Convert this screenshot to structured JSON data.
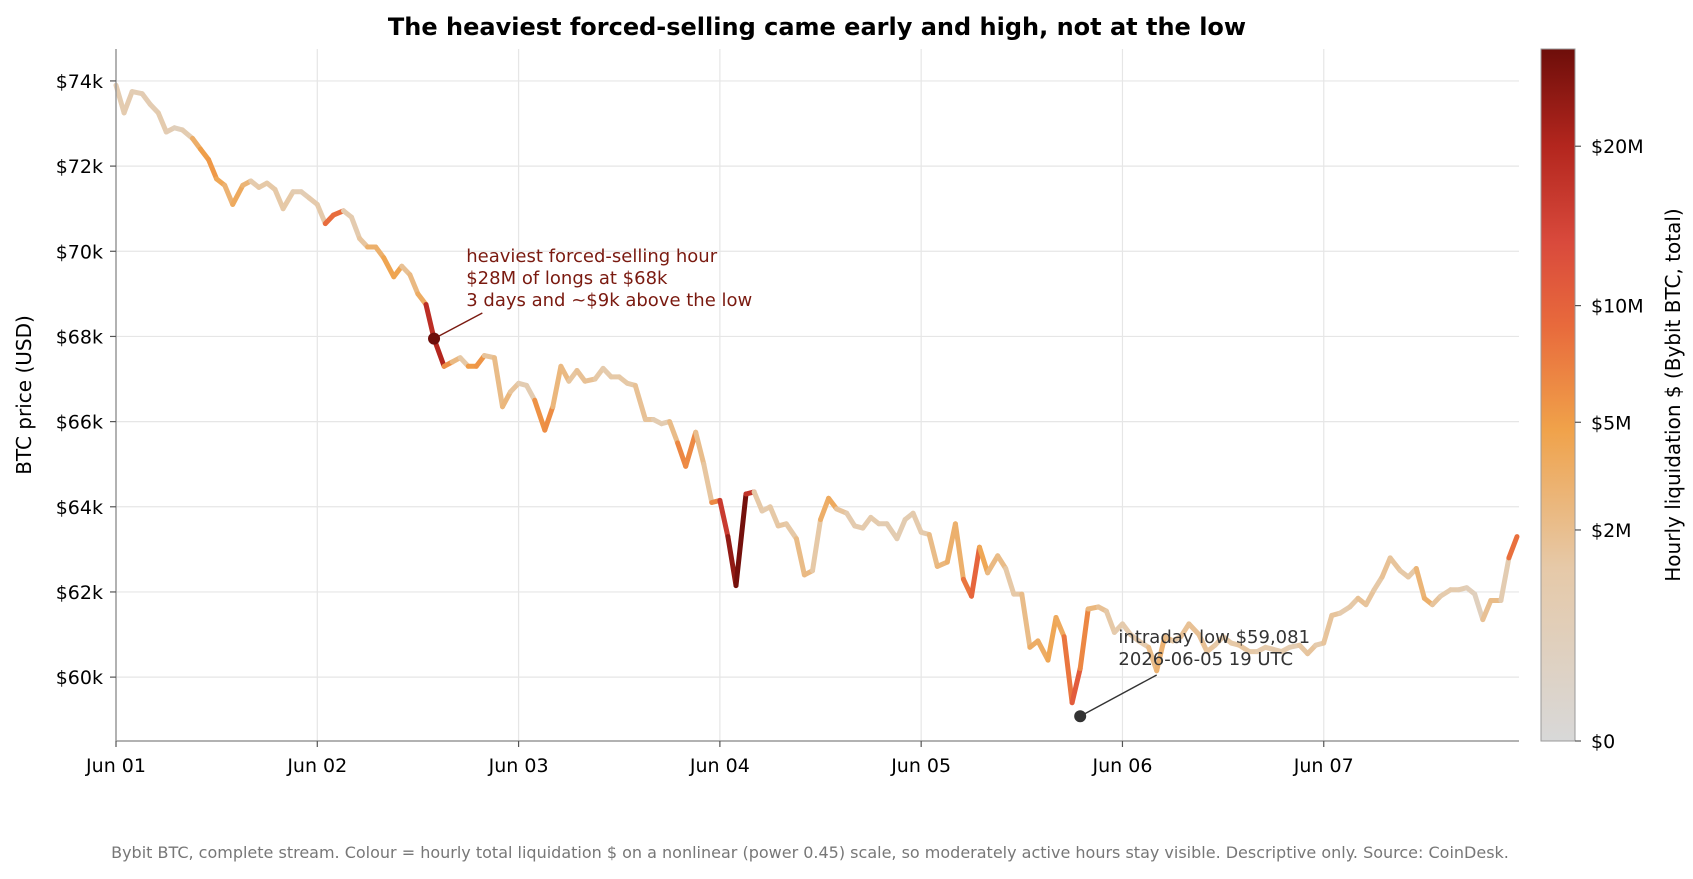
{
  "chart_data": {
    "type": "line",
    "title": "The heaviest forced-selling came early and high, not at the low",
    "ylabel": "BTC price (USD)",
    "xlabel": "",
    "x_unit": "2026-06 day (fractional, UTC)",
    "xlim": [
      1.0,
      7.97
    ],
    "ylim": [
      58500,
      74750
    ],
    "x_ticks": [
      {
        "x": 1,
        "label": "Jun 01"
      },
      {
        "x": 2,
        "label": "Jun 02"
      },
      {
        "x": 3,
        "label": "Jun 03"
      },
      {
        "x": 4,
        "label": "Jun 04"
      },
      {
        "x": 5,
        "label": "Jun 05"
      },
      {
        "x": 6,
        "label": "Jun 06"
      },
      {
        "x": 7,
        "label": "Jun 07"
      }
    ],
    "y_ticks": [
      {
        "y": 60000,
        "label": "$60k"
      },
      {
        "y": 62000,
        "label": "$62k"
      },
      {
        "y": 64000,
        "label": "$64k"
      },
      {
        "y": 66000,
        "label": "$66k"
      },
      {
        "y": 68000,
        "label": "$68k"
      },
      {
        "y": 70000,
        "label": "$70k"
      },
      {
        "y": 72000,
        "label": "$72k"
      },
      {
        "y": 74000,
        "label": "$74k"
      }
    ],
    "grid": true,
    "colorbar": {
      "label": "Hourly liquidation $ (Bybit BTC, total)",
      "scale": "power 0.45",
      "max_millions": 28,
      "ticks": [
        {
          "value_millions": 0,
          "label": "$0"
        },
        {
          "value_millions": 2,
          "label": "$2M"
        },
        {
          "value_millions": 5,
          "label": "$5M"
        },
        {
          "value_millions": 10,
          "label": "$10M"
        },
        {
          "value_millions": 20,
          "label": "$20M"
        }
      ],
      "colors": [
        "#d8d8d8",
        "#e6c9a8",
        "#f0a24a",
        "#e86a3c",
        "#d94a3c",
        "#b3261e",
        "#6e0e0a"
      ]
    },
    "series": [
      {
        "points": [
          [
            1.0,
            73900,
            0.3
          ],
          [
            1.04,
            73250,
            1.2
          ],
          [
            1.08,
            73750,
            0.5
          ],
          [
            1.13,
            73700,
            0.8
          ],
          [
            1.17,
            73450,
            0.6
          ],
          [
            1.21,
            73250,
            0.9
          ],
          [
            1.25,
            72800,
            1.0
          ],
          [
            1.29,
            72900,
            0.3
          ],
          [
            1.33,
            72850,
            0.5
          ],
          [
            1.38,
            72650,
            1.0
          ],
          [
            1.42,
            72400,
            5.0
          ],
          [
            1.46,
            72150,
            5.0
          ],
          [
            1.5,
            71700,
            5.5
          ],
          [
            1.54,
            71550,
            2.0
          ],
          [
            1.58,
            71100,
            3.5
          ],
          [
            1.63,
            71550,
            4.0
          ],
          [
            1.67,
            71650,
            1.0
          ],
          [
            1.71,
            71500,
            1.0
          ],
          [
            1.75,
            71600,
            1.5
          ],
          [
            1.79,
            71450,
            1.0
          ],
          [
            1.83,
            71000,
            1.5
          ],
          [
            1.88,
            71400,
            1.0
          ],
          [
            1.92,
            71400,
            0.5
          ],
          [
            1.96,
            71250,
            0.8
          ],
          [
            2.0,
            71100,
            1.2
          ],
          [
            2.04,
            70650,
            1.0
          ],
          [
            2.08,
            70850,
            14.0
          ],
          [
            2.13,
            70950,
            0.8
          ],
          [
            2.17,
            70800,
            1.0
          ],
          [
            2.21,
            70300,
            0.8
          ],
          [
            2.25,
            70100,
            2.0
          ],
          [
            2.29,
            70100,
            4.0
          ],
          [
            2.33,
            69850,
            2.0
          ],
          [
            2.38,
            69400,
            6.0
          ],
          [
            2.42,
            69650,
            2.0
          ],
          [
            2.46,
            69450,
            1.5
          ],
          [
            2.5,
            69000,
            3.0
          ],
          [
            2.54,
            68750,
            4.0
          ],
          [
            2.58,
            67950,
            28.0
          ],
          [
            2.63,
            67300,
            8.0
          ],
          [
            2.67,
            67400,
            3.0
          ],
          [
            2.71,
            67500,
            1.5
          ],
          [
            2.75,
            67300,
            1.0
          ],
          [
            2.79,
            67300,
            8.0
          ],
          [
            2.83,
            67550,
            2.0
          ],
          [
            2.88,
            67500,
            1.0
          ],
          [
            2.92,
            66350,
            3.0
          ],
          [
            2.96,
            66700,
            2.0
          ],
          [
            3.0,
            66900,
            1.0
          ],
          [
            3.04,
            66850,
            0.5
          ],
          [
            3.08,
            66500,
            1.0
          ],
          [
            3.13,
            65800,
            9.0
          ],
          [
            3.17,
            66350,
            2.0
          ],
          [
            3.21,
            67300,
            3.0
          ],
          [
            3.25,
            66950,
            1.5
          ],
          [
            3.29,
            67200,
            1.5
          ],
          [
            3.33,
            66950,
            2.0
          ],
          [
            3.38,
            67000,
            1.5
          ],
          [
            3.42,
            67250,
            1.0
          ],
          [
            3.46,
            67050,
            1.0
          ],
          [
            3.5,
            67050,
            1.5
          ],
          [
            3.54,
            66900,
            1.0
          ],
          [
            3.58,
            66850,
            1.5
          ],
          [
            3.63,
            66050,
            2.0
          ],
          [
            3.67,
            66050,
            1.0
          ],
          [
            3.71,
            65950,
            0.5
          ],
          [
            3.75,
            66000,
            1.0
          ],
          [
            3.79,
            65500,
            3.0
          ],
          [
            3.83,
            64950,
            9.0
          ],
          [
            3.88,
            65750,
            2.5
          ],
          [
            3.92,
            65000,
            1.5
          ],
          [
            3.96,
            64100,
            1.5
          ],
          [
            4.0,
            64150,
            10.0
          ],
          [
            4.04,
            63300,
            20.0
          ],
          [
            4.08,
            62150,
            26.0
          ],
          [
            4.13,
            64300,
            28.0
          ],
          [
            4.17,
            64350,
            1.5
          ],
          [
            4.21,
            63900,
            1.0
          ],
          [
            4.25,
            64000,
            1.0
          ],
          [
            4.29,
            63550,
            1.5
          ],
          [
            4.33,
            63600,
            1.5
          ],
          [
            4.38,
            63250,
            1.0
          ],
          [
            4.42,
            62400,
            3.0
          ],
          [
            4.46,
            62500,
            1.5
          ],
          [
            4.5,
            63700,
            1.0
          ],
          [
            4.54,
            64200,
            5.0
          ],
          [
            4.58,
            63950,
            2.0
          ],
          [
            4.63,
            63850,
            1.0
          ],
          [
            4.67,
            63550,
            0.8
          ],
          [
            4.71,
            63500,
            1.0
          ],
          [
            4.75,
            63750,
            1.0
          ],
          [
            4.79,
            63600,
            1.0
          ],
          [
            4.83,
            63600,
            0.5
          ],
          [
            4.88,
            63250,
            1.0
          ],
          [
            4.92,
            63700,
            0.5
          ],
          [
            4.96,
            63850,
            1.0
          ],
          [
            5.0,
            63400,
            1.0
          ],
          [
            5.04,
            63350,
            1.0
          ],
          [
            5.08,
            62600,
            3.0
          ],
          [
            5.13,
            62700,
            2.0
          ],
          [
            5.17,
            63600,
            4.0
          ],
          [
            5.21,
            62300,
            2.0
          ],
          [
            5.25,
            61900,
            12.0
          ],
          [
            5.29,
            63050,
            6.0
          ],
          [
            5.33,
            62450,
            1.5
          ],
          [
            5.38,
            62850,
            3.0
          ],
          [
            5.42,
            62550,
            1.0
          ],
          [
            5.46,
            61950,
            1.5
          ],
          [
            5.5,
            61950,
            1.0
          ],
          [
            5.54,
            60700,
            3.0
          ],
          [
            5.58,
            60850,
            4.0
          ],
          [
            5.63,
            60400,
            3.0
          ],
          [
            5.67,
            61400,
            5.0
          ],
          [
            5.71,
            60950,
            2.0
          ],
          [
            5.75,
            59400,
            12.0
          ],
          [
            5.79,
            60200,
            9.0
          ],
          [
            5.83,
            61600,
            3.0
          ],
          [
            5.88,
            61650,
            2.0
          ],
          [
            5.92,
            61550,
            1.5
          ],
          [
            5.96,
            61050,
            1.0
          ],
          [
            6.0,
            61250,
            1.0
          ],
          [
            6.04,
            61000,
            1.0
          ],
          [
            6.08,
            60850,
            1.0
          ],
          [
            6.13,
            60700,
            1.0
          ],
          [
            6.17,
            60150,
            3.0
          ],
          [
            6.21,
            60950,
            3.0
          ],
          [
            6.25,
            60850,
            1.0
          ],
          [
            6.29,
            60950,
            1.5
          ],
          [
            6.33,
            61250,
            2.0
          ],
          [
            6.38,
            61000,
            1.5
          ],
          [
            6.42,
            60600,
            2.0
          ],
          [
            6.46,
            60750,
            1.0
          ],
          [
            6.5,
            60950,
            1.5
          ],
          [
            6.54,
            60800,
            1.0
          ],
          [
            6.58,
            60750,
            1.5
          ],
          [
            6.63,
            60600,
            1.5
          ],
          [
            6.67,
            60600,
            1.0
          ],
          [
            6.71,
            60700,
            1.0
          ],
          [
            6.75,
            60650,
            1.0
          ],
          [
            6.79,
            60600,
            1.0
          ],
          [
            6.83,
            60700,
            1.0
          ],
          [
            6.88,
            60750,
            0.5
          ],
          [
            6.92,
            60550,
            2.0
          ],
          [
            6.96,
            60750,
            1.0
          ],
          [
            7.0,
            60800,
            1.0
          ],
          [
            7.04,
            61450,
            2.0
          ],
          [
            7.08,
            61500,
            1.0
          ],
          [
            7.13,
            61650,
            1.0
          ],
          [
            7.17,
            61850,
            1.5
          ],
          [
            7.21,
            61700,
            2.0
          ],
          [
            7.25,
            62050,
            1.0
          ],
          [
            7.29,
            62350,
            1.5
          ],
          [
            7.33,
            62800,
            2.0
          ],
          [
            7.38,
            62500,
            1.0
          ],
          [
            7.42,
            62350,
            1.5
          ],
          [
            7.46,
            62550,
            1.0
          ],
          [
            7.5,
            61850,
            4.0
          ],
          [
            7.54,
            61700,
            2.0
          ],
          [
            7.58,
            61900,
            1.0
          ],
          [
            7.63,
            62050,
            1.0
          ],
          [
            7.67,
            62050,
            1.0
          ],
          [
            7.71,
            62100,
            0.5
          ],
          [
            7.75,
            61950,
            0.5
          ],
          [
            7.79,
            61350,
            0.1
          ],
          [
            7.83,
            61800,
            3.0
          ],
          [
            7.88,
            61800,
            1.0
          ],
          [
            7.92,
            62800,
            0.5
          ],
          [
            7.96,
            63300,
            14.0
          ]
        ]
      }
    ],
    "markers": [
      {
        "x": 2.58,
        "y": 67950,
        "color": "#6e0e0a"
      },
      {
        "x": 5.79,
        "y": 59081,
        "color": "#333333"
      }
    ],
    "annotations": [
      {
        "lines": [
          "heaviest forced-selling hour",
          "$28M of longs at $68k",
          "3 days and ~$9k above the low"
        ],
        "color": "#7a1a10",
        "text_x": 2.74,
        "text_y": 69750,
        "arrow_from": [
          2.58,
          67950
        ],
        "arrow_to": [
          2.82,
          68550
        ]
      },
      {
        "lines": [
          "intraday low $59,081",
          "2026-06-05 19 UTC"
        ],
        "color": "#333333",
        "text_x": 5.98,
        "text_y": 60800,
        "arrow_from": [
          5.79,
          59081
        ],
        "arrow_to": [
          6.17,
          60050
        ]
      }
    ],
    "footnote": "Bybit BTC, complete stream. Colour = hourly total liquidation $ on a nonlinear (power 0.45) scale, so moderately active hours stay visible. Descriptive only. Source: CoinDesk."
  }
}
